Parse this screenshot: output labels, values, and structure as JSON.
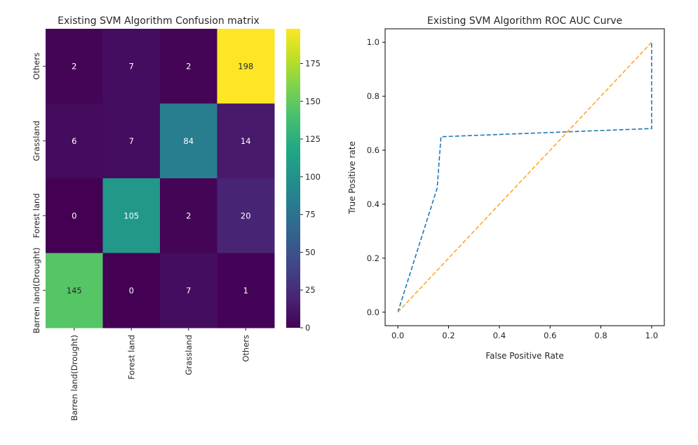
{
  "chart_data": [
    {
      "type": "heatmap",
      "title": "Existing SVM Algorithm Confusion matrix",
      "xlabel": "",
      "ylabel": "",
      "x_categories": [
        "Barren land(Drought)",
        "Forest land",
        "Grassland",
        "Others"
      ],
      "y_categories_top_to_bottom": [
        "Others",
        "Grassland",
        "Forest land",
        "Barren land(Drought)"
      ],
      "values_top_to_bottom": [
        [
          2,
          7,
          2,
          198
        ],
        [
          6,
          7,
          84,
          14
        ],
        [
          0,
          105,
          2,
          20
        ],
        [
          145,
          0,
          7,
          1
        ]
      ],
      "colormap": "viridis",
      "colorbar": {
        "range": [
          0,
          198
        ],
        "ticks": [
          0,
          25,
          50,
          75,
          100,
          125,
          150,
          175
        ]
      }
    },
    {
      "type": "line",
      "title": "Existing SVM Algorithm ROC AUC Curve",
      "xlabel": "False Positive Rate",
      "ylabel": "True Positive rate",
      "xlim": [
        -0.05,
        1.05
      ],
      "ylim": [
        -0.05,
        1.05
      ],
      "xticks": [
        "0.0",
        "0.2",
        "0.4",
        "0.6",
        "0.8",
        "1.0"
      ],
      "yticks": [
        "0.0",
        "0.2",
        "0.4",
        "0.6",
        "0.8",
        "1.0"
      ],
      "grid": false,
      "series": [
        {
          "color": "#1f77b4",
          "style": "dashed",
          "x": [
            0.0,
            0.155,
            0.17,
            0.99,
            1.0,
            1.0
          ],
          "y": [
            0.0,
            0.46,
            0.65,
            0.68,
            0.68,
            1.0
          ]
        },
        {
          "color": "#ffa726",
          "style": "dashed",
          "x": [
            0.0,
            1.0
          ],
          "y": [
            0.0,
            1.0
          ]
        }
      ]
    }
  ]
}
